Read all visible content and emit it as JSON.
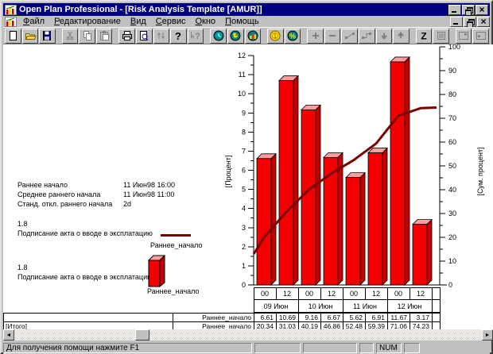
{
  "window": {
    "title": "Open Plan Professional - [Risk Analysis Template [AMUR]]"
  },
  "menu": {
    "items": [
      "Файл",
      "Редактирование",
      "Вид",
      "Сервис",
      "Окно",
      "Помощь"
    ]
  },
  "toolbar": {
    "buttons": [
      {
        "name": "new-document",
        "enabled": true
      },
      {
        "name": "open-file",
        "enabled": true
      },
      {
        "name": "save",
        "enabled": true,
        "group_end": true
      },
      {
        "name": "cut",
        "enabled": false
      },
      {
        "name": "copy",
        "enabled": false
      },
      {
        "name": "paste",
        "enabled": false,
        "group_end": true
      },
      {
        "name": "print",
        "enabled": true
      },
      {
        "name": "print-preview",
        "enabled": true
      },
      {
        "name": "insert-rows",
        "enabled": false
      },
      {
        "name": "help",
        "enabled": true
      },
      {
        "name": "context-help",
        "enabled": false,
        "group_end": true
      },
      {
        "name": "time-analysis",
        "enabled": true
      },
      {
        "name": "resource-analysis",
        "enabled": true
      },
      {
        "name": "risk-analysis",
        "enabled": true,
        "group_end": true
      },
      {
        "name": "cost-analysis",
        "enabled": true
      },
      {
        "name": "percent-complete",
        "enabled": true,
        "group_end": true
      },
      {
        "name": "add",
        "enabled": false
      },
      {
        "name": "remove",
        "enabled": false
      },
      {
        "name": "link-activities",
        "enabled": false
      },
      {
        "name": "unlink-activities",
        "enabled": false
      },
      {
        "name": "move-down",
        "enabled": false
      },
      {
        "name": "move-up",
        "enabled": false,
        "group_end": true
      },
      {
        "name": "sort",
        "enabled": true
      },
      {
        "name": "filter",
        "enabled": false,
        "group_end": true
      },
      {
        "name": "expand-window",
        "enabled": false
      },
      {
        "name": "shrink-window",
        "enabled": false
      }
    ]
  },
  "info_panel": {
    "rows": [
      {
        "label": "Раннее начало",
        "value": "11 Июн98 16:00"
      },
      {
        "label": "Среднее раннего начала",
        "value": "11 Июн98 11:00"
      },
      {
        "label": "Станд. откл.  раннего начала",
        "value": "2d"
      }
    ]
  },
  "legend": [
    {
      "value": "1.8",
      "description": "Подписание акта о вводе в эксплатацию",
      "swatch": "line",
      "series": "Раннее_начало"
    },
    {
      "value": "1.8",
      "description": "Подписание акта о вводе в эксплатацию",
      "swatch": "bar",
      "series": "Раннее_начало"
    }
  ],
  "chart_data": {
    "type": "bar",
    "title": "",
    "x_tick_labels": [
      "00",
      "12",
      "00",
      "12",
      "00",
      "12",
      "00",
      "12"
    ],
    "x_group_labels": [
      "09 Июн",
      "10 Июн",
      "11 Июн",
      "12 Июн"
    ],
    "left_axis": {
      "label": "[Процент]",
      "min": 0,
      "max": 12,
      "tick_step": 1
    },
    "right_axis": {
      "label": "[Сум. процент]",
      "min": 0,
      "max": 100,
      "tick_step": 10
    },
    "series": [
      {
        "name": "Раннее_начало",
        "type": "bar",
        "axis": "left",
        "values": [
          6.61,
          10.69,
          9.16,
          6.67,
          5.62,
          6.91,
          11.67,
          3.17
        ]
      },
      {
        "name": "Раннее_начало",
        "type": "line",
        "axis": "right",
        "values": [
          20.34,
          31.03,
          40.19,
          46.86,
          52.48,
          59.39,
          71.06,
          74.23
        ],
        "edge_start_value": 13,
        "edge_end_value": 74.5
      }
    ],
    "colors": {
      "bar_front": "#f40000",
      "bar_top": "#ff9c9c",
      "bar_side": "#c00000",
      "line": "#7b0000"
    },
    "table_rows": [
      {
        "row_label": "",
        "series_label": "Раннее_начало",
        "values": [
          "6.61",
          "10.69",
          "9.16",
          "6.67",
          "5.62",
          "6.91",
          "11.67",
          "3.17"
        ]
      },
      {
        "row_label": "[Итого]",
        "series_label": "Раннее_начало",
        "values": [
          "20.34",
          "31.03",
          "40.19",
          "46.86",
          "52.48",
          "59.39",
          "71.06",
          "74.23"
        ]
      }
    ]
  },
  "status_bar": {
    "help_text": "Для получения помощи нажмите F1",
    "num_indicator": "NUM"
  }
}
